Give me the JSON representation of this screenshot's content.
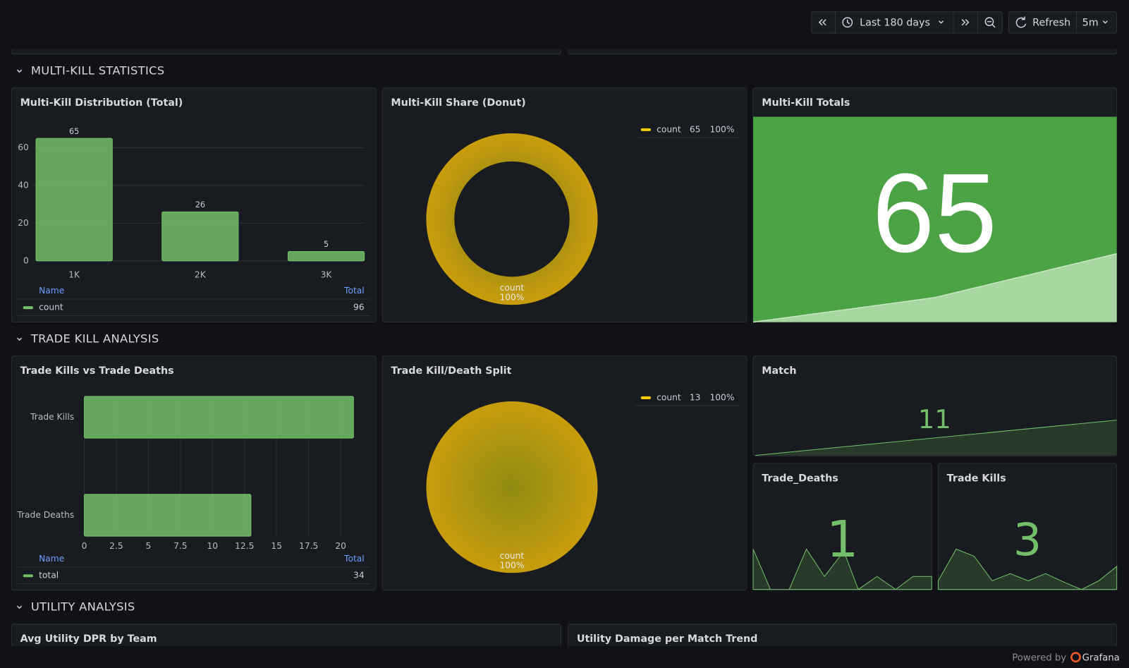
{
  "toolbar": {
    "time_range": "Last 180 days",
    "refresh_button": "Refresh",
    "refresh_interval": "5m"
  },
  "sections": [
    "MULTI-KILL STATISTICS",
    "TRADE KILL ANALYSIS",
    "UTILITY ANALYSIS"
  ],
  "chart_data": [
    {
      "type": "bar",
      "title": "Multi-Kill Distribution (Total)",
      "categories": [
        "1K",
        "2K",
        "3K"
      ],
      "series": [
        {
          "name": "count",
          "color": "#73bf69",
          "values": [
            65,
            26,
            5
          ]
        }
      ],
      "ylim": [
        0,
        65
      ],
      "yticks": [
        0,
        20,
        40,
        60
      ],
      "grid": true,
      "legend": {
        "name_header": "Name",
        "total_header": "Total",
        "totals": [
          96
        ]
      }
    },
    {
      "type": "donut",
      "title": "Multi-Kill Share (Donut)",
      "categories": [
        "count"
      ],
      "values": [
        65
      ],
      "shares": [
        100
      ],
      "share_labels": [
        "100%"
      ],
      "colors": [
        "#c99c0e"
      ],
      "legend": "top-right"
    },
    {
      "type": "hbar",
      "title": "Trade Kills vs Trade Deaths",
      "categories": [
        "Trade Kills",
        "Trade Deaths"
      ],
      "series": [
        {
          "name": "total",
          "color": "#73bf69",
          "values": [
            21,
            13
          ]
        }
      ],
      "xlim": [
        0,
        21
      ],
      "xticks": [
        0,
        2.5,
        5,
        7.5,
        10,
        12.5,
        15,
        17.5,
        20
      ],
      "grid": true,
      "legend": {
        "name_header": "Name",
        "total_header": "Total",
        "totals": [
          34
        ]
      }
    },
    {
      "type": "pie",
      "title": "Trade Kill/Death Split",
      "categories": [
        "count"
      ],
      "values": [
        13
      ],
      "shares": [
        100
      ],
      "share_labels": [
        "100%"
      ],
      "colors": [
        "#c99c0e"
      ],
      "legend": "top-right"
    }
  ],
  "stats": [
    {
      "title": "Multi-Kill Totals",
      "value": 65
    },
    {
      "title": "Match",
      "value": 11
    },
    {
      "title": "Trade_Deaths",
      "value": 1
    },
    {
      "title": "Trade Kills",
      "value": 3
    }
  ],
  "bottom_panels": [
    "Avg Utility DPR by Team",
    "Utility Damage per Match Trend"
  ],
  "footer": {
    "text": "Powered by",
    "brand": "Grafana"
  }
}
